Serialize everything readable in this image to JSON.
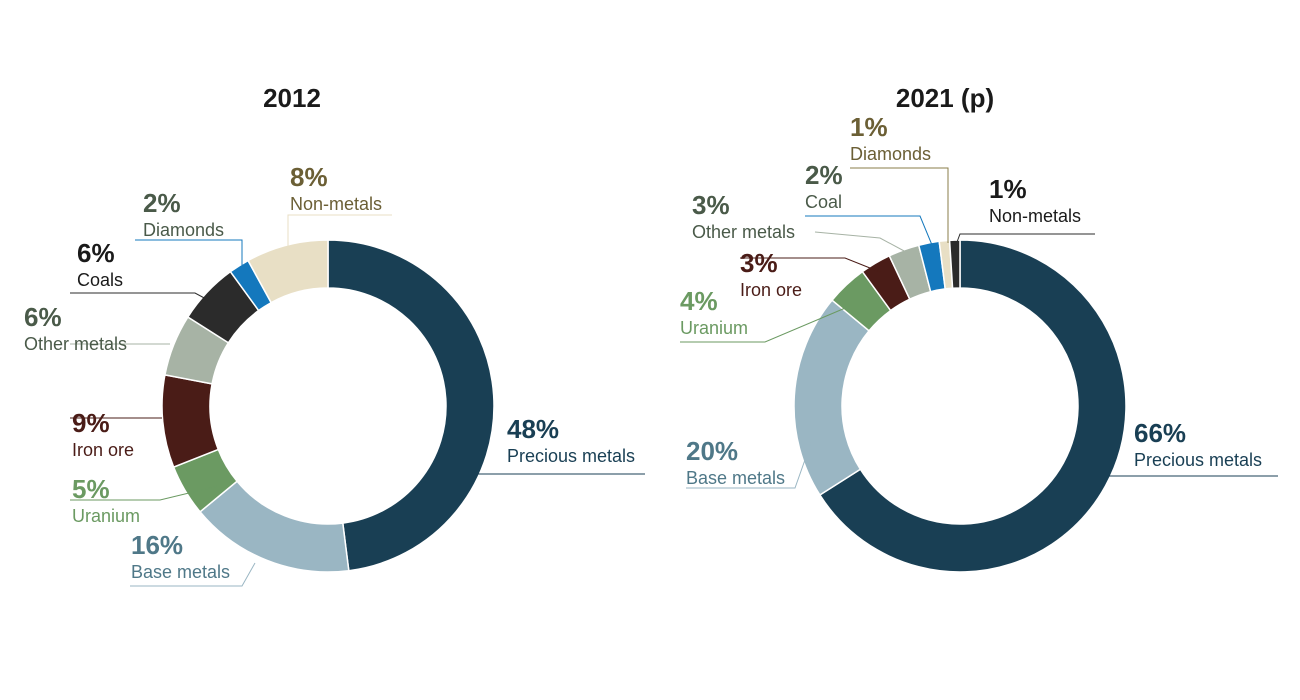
{
  "chart_data": [
    {
      "type": "pie",
      "title": "2012",
      "slices": [
        {
          "name": "Precious metals",
          "value": 48,
          "label": "48%",
          "color": "#193f54",
          "text_color": "#193f54",
          "line_color": "#193f54"
        },
        {
          "name": "Base metals",
          "value": 16,
          "label": "16%",
          "color": "#9ab6c3",
          "text_color": "#4f7888",
          "line_color": "#9ab6c3"
        },
        {
          "name": "Uranium",
          "value": 5,
          "label": "5%",
          "color": "#6b9a62",
          "text_color": "#6b9a62",
          "line_color": "#6b9a62"
        },
        {
          "name": "Iron ore",
          "value": 9,
          "label": "9%",
          "color": "#4a1c17",
          "text_color": "#4a1c17",
          "line_color": "#4a1c17"
        },
        {
          "name": "Other metals",
          "value": 6,
          "label": "6%",
          "color": "#a7b3a5",
          "text_color": "#4a5a49",
          "line_color": "#a7b3a5"
        },
        {
          "name": "Coals",
          "value": 6,
          "label": "6%",
          "color": "#2b2b2b",
          "text_color": "#1a1a1a",
          "line_color": "#2b2b2b"
        },
        {
          "name": "Diamonds",
          "value": 2,
          "label": "2%",
          "color": "#1478bd",
          "text_color": "#4a5a49",
          "line_color": "#1478bd"
        },
        {
          "name": "Non-metals",
          "value": 8,
          "label": "8%",
          "color": "#e8dfc5",
          "text_color": "#6b5f35",
          "line_color": "#e8dfc5"
        }
      ]
    },
    {
      "type": "pie",
      "title": "2021 (p)",
      "slices": [
        {
          "name": "Precious metals",
          "value": 66,
          "label": "66%",
          "color": "#193f54",
          "text_color": "#193f54",
          "line_color": "#193f54"
        },
        {
          "name": "Base metals",
          "value": 20,
          "label": "20%",
          "color": "#9ab6c3",
          "text_color": "#4f7888",
          "line_color": "#9ab6c3"
        },
        {
          "name": "Uranium",
          "value": 4,
          "label": "4%",
          "color": "#6b9a62",
          "text_color": "#6b9a62",
          "line_color": "#6b9a62"
        },
        {
          "name": "Iron ore",
          "value": 3,
          "label": "3%",
          "color": "#4a1c17",
          "text_color": "#4a1c17",
          "line_color": "#4a1c17"
        },
        {
          "name": "Other metals",
          "value": 3,
          "label": "3%",
          "color": "#a7b3a5",
          "text_color": "#4a5a49",
          "line_color": "#a7b3a5"
        },
        {
          "name": "Coal",
          "value": 2,
          "label": "2%",
          "color": "#1478bd",
          "text_color": "#4a5a49",
          "line_color": "#1478bd"
        },
        {
          "name": "Diamonds",
          "value": 1,
          "label": "1%",
          "color": "#e8dfc5",
          "text_color": "#6b5f35",
          "line_color": "#8a7d4a"
        },
        {
          "name": "Non-metals",
          "value": 1,
          "label": "1%",
          "color": "#2b2b2b",
          "text_color": "#1a1a1a",
          "line_color": "#2b2b2b"
        }
      ]
    }
  ]
}
